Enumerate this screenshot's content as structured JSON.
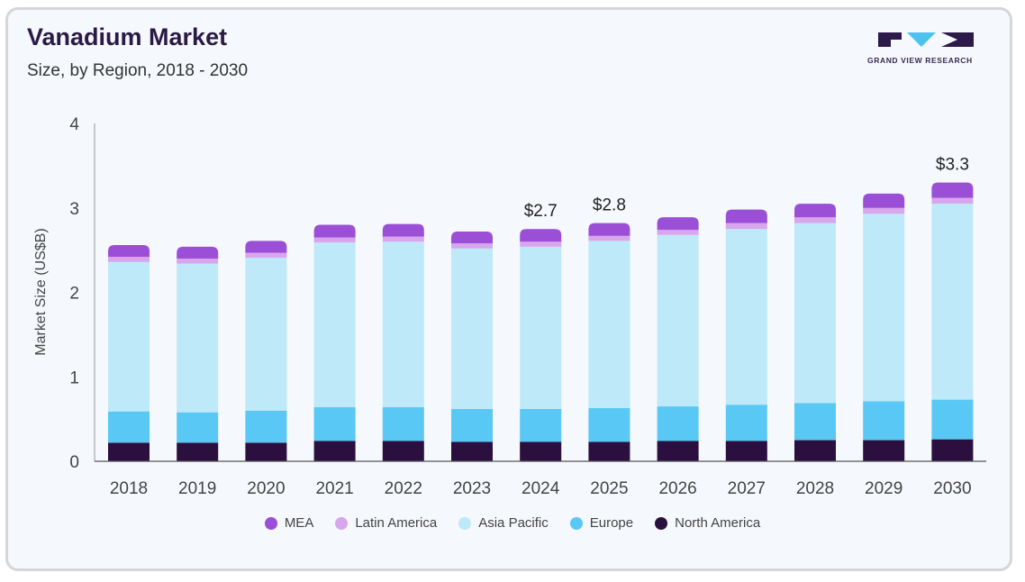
{
  "header": {
    "title": "Vanadium Market",
    "subtitle": "Size, by Region, 2018 - 2030"
  },
  "logo": {
    "text": "GRAND VIEW RESEARCH",
    "icon": "grand-view-research-logo"
  },
  "chart_data": {
    "type": "bar",
    "stacked": true,
    "categories": [
      "2018",
      "2019",
      "2020",
      "2021",
      "2022",
      "2023",
      "2024",
      "2025",
      "2026",
      "2027",
      "2028",
      "2029",
      "2030"
    ],
    "ylabel": "Market Size (US$B)",
    "ylim": [
      0,
      4
    ],
    "yticks": [
      "0",
      "1",
      "2",
      "3",
      "4"
    ],
    "grid": false,
    "legend_position": "bottom",
    "series": [
      {
        "name": "North America",
        "color": "#2b0f3f",
        "values": [
          0.22,
          0.22,
          0.22,
          0.24,
          0.24,
          0.23,
          0.23,
          0.23,
          0.24,
          0.24,
          0.25,
          0.25,
          0.26
        ]
      },
      {
        "name": "Europe",
        "color": "#5ac8f5",
        "values": [
          0.37,
          0.36,
          0.38,
          0.4,
          0.4,
          0.39,
          0.39,
          0.4,
          0.41,
          0.43,
          0.44,
          0.46,
          0.47
        ]
      },
      {
        "name": "Asia Pacific",
        "color": "#bee9f8",
        "values": [
          1.77,
          1.76,
          1.81,
          1.95,
          1.96,
          1.9,
          1.92,
          1.98,
          2.03,
          2.08,
          2.13,
          2.22,
          2.32
        ]
      },
      {
        "name": "Latin America",
        "color": "#d7a6ec",
        "values": [
          0.06,
          0.06,
          0.06,
          0.06,
          0.06,
          0.06,
          0.06,
          0.06,
          0.06,
          0.07,
          0.07,
          0.07,
          0.07
        ]
      },
      {
        "name": "MEA",
        "color": "#9b4fd6",
        "values": [
          0.14,
          0.14,
          0.14,
          0.15,
          0.15,
          0.14,
          0.15,
          0.15,
          0.15,
          0.16,
          0.16,
          0.17,
          0.18
        ]
      }
    ],
    "annotations": [
      {
        "category": "2024",
        "text": "$2.7"
      },
      {
        "category": "2025",
        "text": "$2.8"
      },
      {
        "category": "2030",
        "text": "$3.3"
      }
    ]
  }
}
